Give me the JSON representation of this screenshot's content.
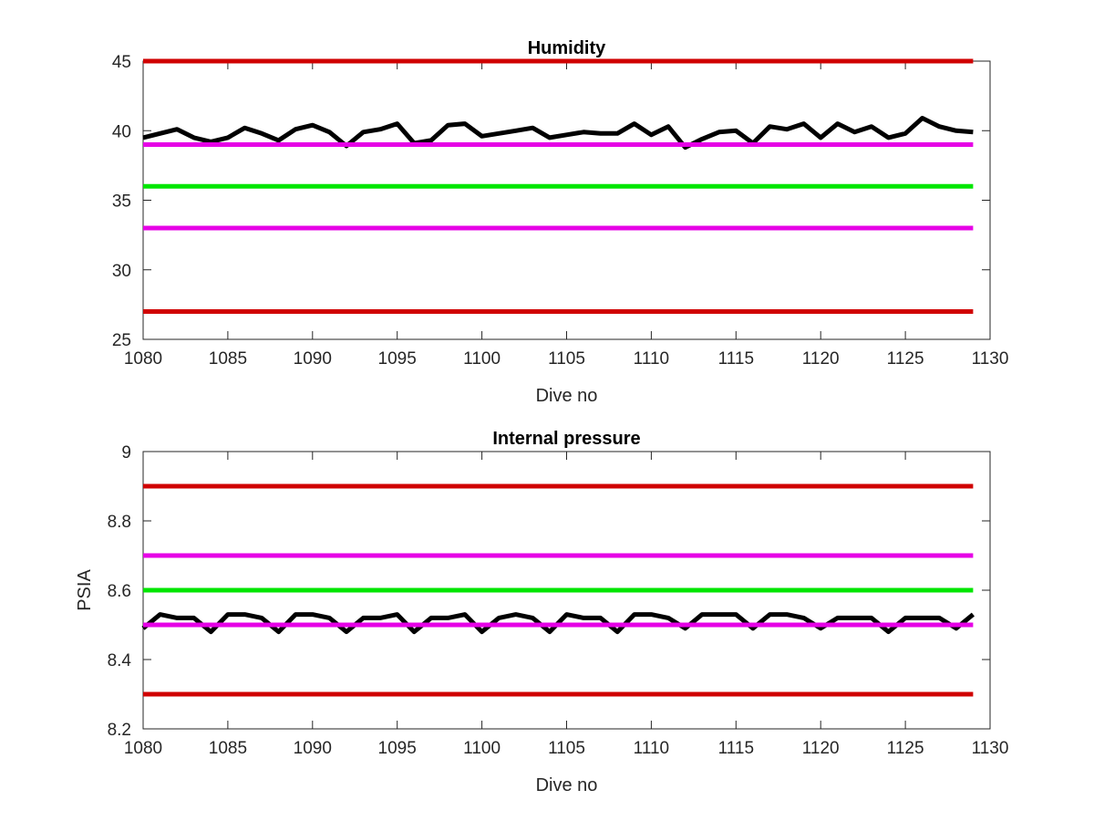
{
  "chart_data": [
    {
      "type": "line",
      "title": "Humidity",
      "xlabel": "Dive no",
      "ylabel": "",
      "xlim": [
        1080,
        1130
      ],
      "ylim": [
        25,
        45
      ],
      "xticks": [
        1080,
        1085,
        1090,
        1095,
        1100,
        1105,
        1110,
        1115,
        1120,
        1125,
        1130
      ],
      "yticks": [
        25,
        30,
        35,
        40,
        45
      ],
      "grid": false,
      "series": [
        {
          "color": "#000000",
          "x": [
            1080,
            1081,
            1082,
            1083,
            1084,
            1085,
            1086,
            1087,
            1088,
            1089,
            1090,
            1091,
            1092,
            1093,
            1094,
            1095,
            1096,
            1097,
            1098,
            1099,
            1100,
            1101,
            1102,
            1103,
            1104,
            1105,
            1106,
            1107,
            1108,
            1109,
            1110,
            1111,
            1112,
            1113,
            1114,
            1115,
            1116,
            1117,
            1118,
            1119,
            1120,
            1121,
            1122,
            1123,
            1124,
            1125,
            1126,
            1127,
            1128,
            1129
          ],
          "y": [
            39.5,
            39.8,
            40.1,
            39.5,
            39.2,
            39.5,
            40.2,
            39.8,
            39.3,
            40.1,
            40.4,
            39.9,
            38.9,
            39.9,
            40.1,
            40.5,
            39.1,
            39.3,
            40.4,
            40.5,
            39.6,
            39.8,
            40.0,
            40.2,
            39.5,
            39.7,
            39.9,
            39.8,
            39.8,
            40.5,
            39.7,
            40.3,
            38.8,
            39.4,
            39.9,
            40.0,
            39.1,
            40.3,
            40.1,
            40.5,
            39.5,
            40.5,
            39.9,
            40.3,
            39.5,
            39.8,
            40.9,
            40.3,
            40.0,
            39.9
          ]
        },
        {
          "color": "#d00000",
          "x": [
            1080,
            1129
          ],
          "y": [
            45,
            45
          ]
        },
        {
          "color": "#e600e6",
          "x": [
            1080,
            1129
          ],
          "y": [
            39,
            39
          ]
        },
        {
          "color": "#00e600",
          "x": [
            1080,
            1129
          ],
          "y": [
            36,
            36
          ]
        },
        {
          "color": "#e600e6",
          "x": [
            1080,
            1129
          ],
          "y": [
            33,
            33
          ]
        },
        {
          "color": "#d00000",
          "x": [
            1080,
            1129
          ],
          "y": [
            27,
            27
          ]
        }
      ]
    },
    {
      "type": "line",
      "title": "Internal pressure",
      "xlabel": "Dive no",
      "ylabel": "PSIA",
      "xlim": [
        1080,
        1130
      ],
      "ylim": [
        8.2,
        9
      ],
      "xticks": [
        1080,
        1085,
        1090,
        1095,
        1100,
        1105,
        1110,
        1115,
        1120,
        1125,
        1130
      ],
      "yticks": [
        8.2,
        8.4,
        8.6,
        8.8,
        9
      ],
      "grid": false,
      "series": [
        {
          "color": "#d00000",
          "x": [
            1080,
            1129
          ],
          "y": [
            8.9,
            8.9
          ]
        },
        {
          "color": "#e600e6",
          "x": [
            1080,
            1129
          ],
          "y": [
            8.7,
            8.7
          ]
        },
        {
          "color": "#00e600",
          "x": [
            1080,
            1129
          ],
          "y": [
            8.6,
            8.6
          ]
        },
        {
          "color": "#d00000",
          "x": [
            1080,
            1129
          ],
          "y": [
            8.3,
            8.3
          ]
        },
        {
          "color": "#000000",
          "x": [
            1080,
            1081,
            1082,
            1083,
            1084,
            1085,
            1086,
            1087,
            1088,
            1089,
            1090,
            1091,
            1092,
            1093,
            1094,
            1095,
            1096,
            1097,
            1098,
            1099,
            1100,
            1101,
            1102,
            1103,
            1104,
            1105,
            1106,
            1107,
            1108,
            1109,
            1110,
            1111,
            1112,
            1113,
            1114,
            1115,
            1116,
            1117,
            1118,
            1119,
            1120,
            1121,
            1122,
            1123,
            1124,
            1125,
            1126,
            1127,
            1128,
            1129
          ],
          "y": [
            8.49,
            8.53,
            8.52,
            8.52,
            8.48,
            8.53,
            8.53,
            8.52,
            8.48,
            8.53,
            8.53,
            8.52,
            8.48,
            8.52,
            8.52,
            8.53,
            8.48,
            8.52,
            8.52,
            8.53,
            8.48,
            8.52,
            8.53,
            8.52,
            8.48,
            8.53,
            8.52,
            8.52,
            8.48,
            8.53,
            8.53,
            8.52,
            8.49,
            8.53,
            8.53,
            8.53,
            8.49,
            8.53,
            8.53,
            8.52,
            8.49,
            8.52,
            8.52,
            8.52,
            8.48,
            8.52,
            8.52,
            8.52,
            8.49,
            8.53
          ]
        },
        {
          "color": "#e600e6",
          "x": [
            1080,
            1129
          ],
          "y": [
            8.5,
            8.5
          ]
        }
      ]
    }
  ]
}
